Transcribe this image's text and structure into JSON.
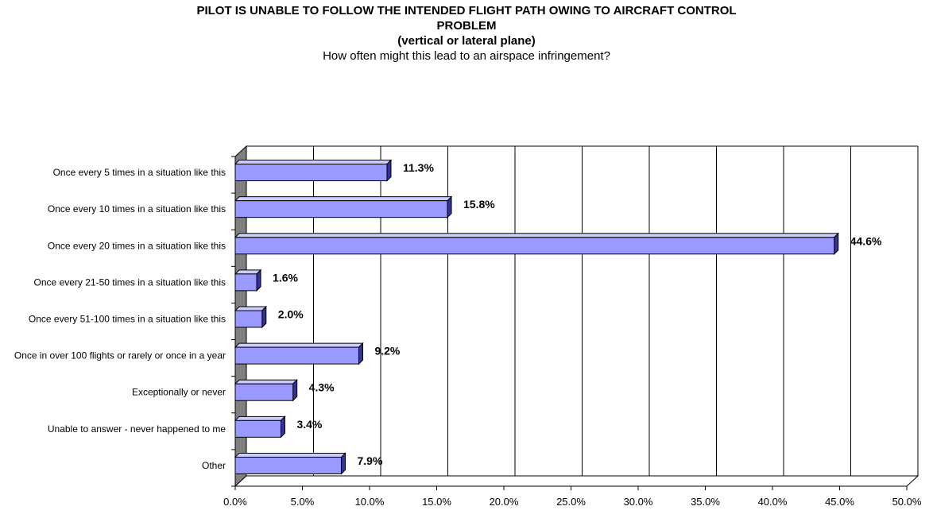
{
  "title": {
    "line1": "PILOT IS UNABLE TO FOLLOW THE INTENDED FLIGHT PATH OWING TO AIRCRAFT CONTROL",
    "line2": "PROBLEM",
    "line3": "(vertical or lateral plane)",
    "subtitle": "How often might this lead to an airspace infringement?"
  },
  "colors": {
    "bar_face": "#9999ff",
    "bar_top": "#ccccff",
    "bar_side": "#33339a",
    "wall": "#808080",
    "grid": "#000000"
  },
  "chart_data": {
    "type": "bar",
    "orientation": "horizontal",
    "style": "3d",
    "categories": [
      "Once every 5 times in a situation like this",
      "Once every 10 times in a situation like this",
      "Once every 20 times in a situation like this",
      "Once every 21-50 times in a situation like this",
      "Once every 51-100 times in a situation like this",
      "Once in over 100 flights or rarely or once in a year",
      "Exceptionally or never",
      "Unable to answer - never happened to me",
      "Other"
    ],
    "values": [
      11.3,
      15.8,
      44.6,
      1.6,
      2.0,
      9.2,
      4.3,
      3.4,
      7.9
    ],
    "data_labels": [
      "11.3%",
      "15.8%",
      "44.6%",
      "1.6%",
      "2.0%",
      "9.2%",
      "4.3%",
      "3.4%",
      "7.9%"
    ],
    "xlim": [
      0,
      50
    ],
    "x_ticks": [
      0,
      5,
      10,
      15,
      20,
      25,
      30,
      35,
      40,
      45,
      50
    ],
    "x_tick_labels": [
      "0.0%",
      "5.0%",
      "10.0%",
      "15.0%",
      "20.0%",
      "25.0%",
      "30.0%",
      "35.0%",
      "40.0%",
      "45.0%",
      "50.0%"
    ],
    "grid": "vertical",
    "legend": "none"
  }
}
